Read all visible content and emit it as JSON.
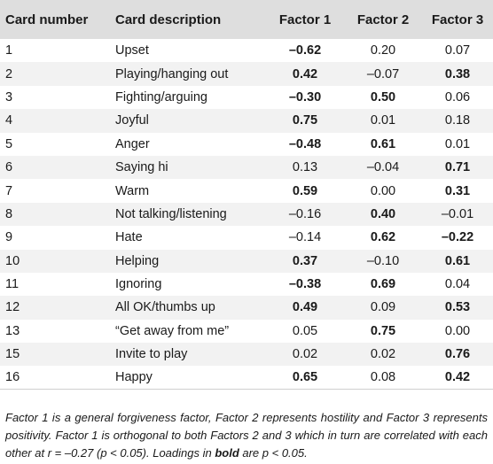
{
  "table": {
    "headers": [
      "Card number",
      "Card description",
      "Factor 1",
      "Factor 2",
      "Factor 3"
    ],
    "rows": [
      {
        "num": "1",
        "desc": "Upset",
        "f1": "–0.62",
        "f1_bold": true,
        "f2": "0.20",
        "f2_bold": false,
        "f3": "0.07",
        "f3_bold": false
      },
      {
        "num": "2",
        "desc": "Playing/hanging out",
        "f1": "0.42",
        "f1_bold": true,
        "f2": "–0.07",
        "f2_bold": false,
        "f3": "0.38",
        "f3_bold": true
      },
      {
        "num": "3",
        "desc": "Fighting/arguing",
        "f1": "–0.30",
        "f1_bold": true,
        "f2": "0.50",
        "f2_bold": true,
        "f3": "0.06",
        "f3_bold": false
      },
      {
        "num": "4",
        "desc": "Joyful",
        "f1": "0.75",
        "f1_bold": true,
        "f2": "0.01",
        "f2_bold": false,
        "f3": "0.18",
        "f3_bold": false
      },
      {
        "num": "5",
        "desc": "Anger",
        "f1": "–0.48",
        "f1_bold": true,
        "f2": "0.61",
        "f2_bold": true,
        "f3": "0.01",
        "f3_bold": false
      },
      {
        "num": "6",
        "desc": "Saying hi",
        "f1": "0.13",
        "f1_bold": false,
        "f2": "–0.04",
        "f2_bold": false,
        "f3": "0.71",
        "f3_bold": true
      },
      {
        "num": "7",
        "desc": "Warm",
        "f1": "0.59",
        "f1_bold": true,
        "f2": "0.00",
        "f2_bold": false,
        "f3": "0.31",
        "f3_bold": true
      },
      {
        "num": "8",
        "desc": "Not talking/listening",
        "f1": "–0.16",
        "f1_bold": false,
        "f2": "0.40",
        "f2_bold": true,
        "f3": "–0.01",
        "f3_bold": false
      },
      {
        "num": "9",
        "desc": "Hate",
        "f1": "–0.14",
        "f1_bold": false,
        "f2": "0.62",
        "f2_bold": true,
        "f3": "–0.22",
        "f3_bold": true
      },
      {
        "num": "10",
        "desc": "Helping",
        "f1": "0.37",
        "f1_bold": true,
        "f2": "–0.10",
        "f2_bold": false,
        "f3": "0.61",
        "f3_bold": true
      },
      {
        "num": "11",
        "desc": "Ignoring",
        "f1": "–0.38",
        "f1_bold": true,
        "f2": "0.69",
        "f2_bold": true,
        "f3": "0.04",
        "f3_bold": false
      },
      {
        "num": "12",
        "desc": "All OK/thumbs up",
        "f1": "0.49",
        "f1_bold": true,
        "f2": "0.09",
        "f2_bold": false,
        "f3": "0.53",
        "f3_bold": true
      },
      {
        "num": "13",
        "desc": "“Get away from me”",
        "f1": "0.05",
        "f1_bold": false,
        "f2": "0.75",
        "f2_bold": true,
        "f3": "0.00",
        "f3_bold": false
      },
      {
        "num": "15",
        "desc": "Invite to play",
        "f1": "0.02",
        "f1_bold": false,
        "f2": "0.02",
        "f2_bold": false,
        "f3": "0.76",
        "f3_bold": true
      },
      {
        "num": "16",
        "desc": "Happy",
        "f1": "0.65",
        "f1_bold": true,
        "f2": "0.08",
        "f2_bold": false,
        "f3": "0.42",
        "f3_bold": true
      }
    ]
  },
  "footnote": {
    "part1": "Factor 1 is a general forgiveness factor, Factor 2 represents hostility and Factor 3 represents positivity. Factor 1 is orthogonal to both Factors 2 and 3 which in turn are correlated with each other at r = –0.27 (p < 0.05). Loadings in ",
    "bold_word": "bold",
    "part2": " are p < 0.05."
  }
}
